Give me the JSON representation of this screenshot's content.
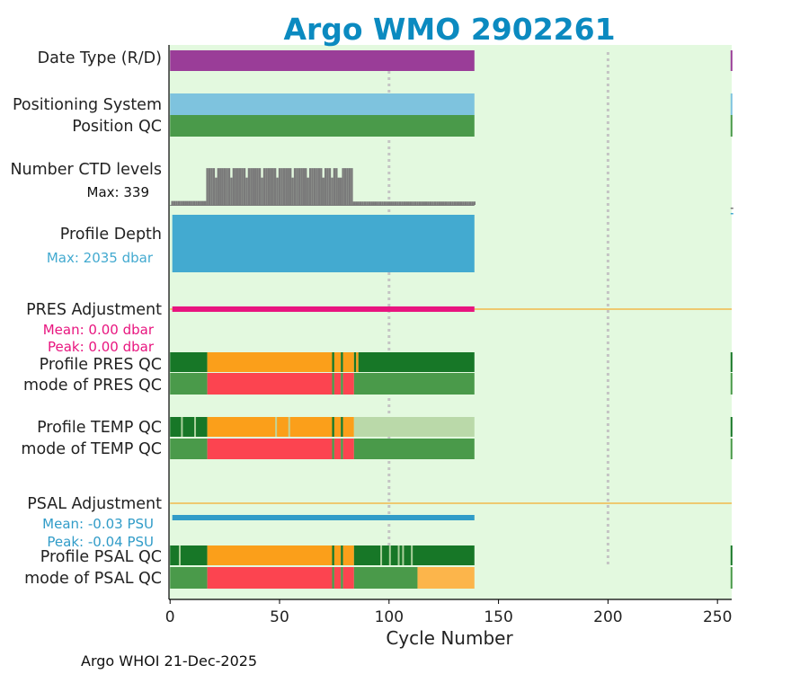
{
  "chart_data": {
    "type": "timeline-qc",
    "title": "Argo WMO 2902261",
    "xlabel": "Cycle Number",
    "xlim": [
      -0.5,
      256.5
    ],
    "xticks": [
      0,
      50,
      100,
      150,
      200,
      250
    ],
    "last_cycle": 139,
    "gridlines_at": [
      100,
      200
    ],
    "footer": "Argo WHOI 21-Dec-2025",
    "colors": {
      "background": "#e3f9df",
      "title": "#0b8ac0",
      "date_type": "#9a3d98",
      "positioning": "#7ec3de",
      "qc_good": "#4a9a4a",
      "qc_good_dark": "#177727",
      "qc_probably_good": "#bad9a9",
      "qc_probably_bad": "#fb9f1a",
      "qc_bad": "#fc4450",
      "qc_changed": "#fcb54b",
      "ctd_levels": "#7a7a7a",
      "profile_depth": "#43aad0",
      "pres_adjustment": "#e8157f",
      "psal_adjustment": "#319cc8",
      "zero_line": "#f2b94b"
    },
    "rows": [
      {
        "label": "Date Type (R/D)",
        "segments": [
          {
            "from": 0,
            "to": 139,
            "color": "date_type"
          },
          {
            "from": 256,
            "to": 257,
            "color": "date_type"
          }
        ]
      },
      {
        "label": "Positioning System",
        "segments": [
          {
            "from": 0,
            "to": 139,
            "color": "positioning"
          },
          {
            "from": 256,
            "to": 257,
            "color": "positioning"
          }
        ]
      },
      {
        "label": "Position QC",
        "segments": [
          {
            "from": 0,
            "to": 139,
            "color": "qc_good"
          },
          {
            "from": 256,
            "to": 257,
            "color": "qc_good"
          }
        ]
      },
      {
        "label": "Profile PRES QC",
        "segments": [
          {
            "from": 0,
            "to": 17,
            "color": "qc_good_dark"
          },
          {
            "from": 17,
            "to": 74,
            "color": "qc_probably_bad"
          },
          {
            "from": 74,
            "to": 75,
            "color": "qc_good_dark"
          },
          {
            "from": 75,
            "to": 78,
            "color": "qc_probably_bad"
          },
          {
            "from": 78,
            "to": 79,
            "color": "qc_good_dark"
          },
          {
            "from": 79,
            "to": 84,
            "color": "qc_probably_bad"
          },
          {
            "from": 84,
            "to": 85,
            "color": "qc_good_dark"
          },
          {
            "from": 85,
            "to": 86,
            "color": "qc_probably_bad"
          },
          {
            "from": 86,
            "to": 139,
            "color": "qc_good_dark"
          },
          {
            "from": 256,
            "to": 257,
            "color": "qc_good_dark"
          }
        ]
      },
      {
        "label": "mode of PRES QC",
        "segments": [
          {
            "from": 0,
            "to": 17,
            "color": "qc_good"
          },
          {
            "from": 17,
            "to": 74,
            "color": "qc_bad"
          },
          {
            "from": 74,
            "to": 75,
            "color": "qc_good"
          },
          {
            "from": 75,
            "to": 78,
            "color": "qc_bad"
          },
          {
            "from": 78,
            "to": 79,
            "color": "qc_good"
          },
          {
            "from": 79,
            "to": 84,
            "color": "qc_bad"
          },
          {
            "from": 84,
            "to": 139,
            "color": "qc_good"
          },
          {
            "from": 256,
            "to": 257,
            "color": "qc_good"
          }
        ]
      },
      {
        "label": "Profile TEMP QC",
        "segments": [
          {
            "from": 0,
            "to": 17,
            "color": "qc_good_dark"
          },
          {
            "from": 17,
            "to": 74,
            "color": "qc_probably_bad"
          },
          {
            "from": 74,
            "to": 75,
            "color": "qc_good_dark"
          },
          {
            "from": 75,
            "to": 78,
            "color": "qc_probably_bad"
          },
          {
            "from": 78,
            "to": 79,
            "color": "qc_good_dark"
          },
          {
            "from": 79,
            "to": 84,
            "color": "qc_probably_bad"
          },
          {
            "from": 84,
            "to": 139,
            "color": "qc_probably_good"
          },
          {
            "from": 256,
            "to": 257,
            "color": "qc_good_dark"
          }
        ]
      },
      {
        "label": "mode of TEMP QC",
        "segments": [
          {
            "from": 0,
            "to": 17,
            "color": "qc_good"
          },
          {
            "from": 17,
            "to": 74,
            "color": "qc_bad"
          },
          {
            "from": 74,
            "to": 75,
            "color": "qc_good"
          },
          {
            "from": 75,
            "to": 78,
            "color": "qc_bad"
          },
          {
            "from": 78,
            "to": 79,
            "color": "qc_good"
          },
          {
            "from": 79,
            "to": 84,
            "color": "qc_bad"
          },
          {
            "from": 84,
            "to": 139,
            "color": "qc_good"
          },
          {
            "from": 256,
            "to": 257,
            "color": "qc_good"
          }
        ]
      },
      {
        "label": "Profile PSAL QC",
        "segments": [
          {
            "from": 0,
            "to": 17,
            "color": "qc_good_dark"
          },
          {
            "from": 17,
            "to": 74,
            "color": "qc_probably_bad"
          },
          {
            "from": 74,
            "to": 75,
            "color": "qc_good_dark"
          },
          {
            "from": 75,
            "to": 78,
            "color": "qc_probably_bad"
          },
          {
            "from": 78,
            "to": 79,
            "color": "qc_good_dark"
          },
          {
            "from": 79,
            "to": 84,
            "color": "qc_probably_bad"
          },
          {
            "from": 84,
            "to": 139,
            "color": "qc_good_dark"
          },
          {
            "from": 256,
            "to": 257,
            "color": "qc_good_dark"
          }
        ]
      },
      {
        "label": "mode of PSAL QC",
        "segments": [
          {
            "from": 0,
            "to": 17,
            "color": "qc_good"
          },
          {
            "from": 17,
            "to": 74,
            "color": "qc_bad"
          },
          {
            "from": 74,
            "to": 75,
            "color": "qc_good"
          },
          {
            "from": 75,
            "to": 78,
            "color": "qc_bad"
          },
          {
            "from": 78,
            "to": 79,
            "color": "qc_good"
          },
          {
            "from": 79,
            "to": 84,
            "color": "qc_bad"
          },
          {
            "from": 84,
            "to": 113,
            "color": "qc_good"
          },
          {
            "from": 113,
            "to": 139,
            "color": "qc_changed"
          },
          {
            "from": 256,
            "to": 257,
            "color": "qc_good"
          }
        ]
      }
    ],
    "ctd_levels": {
      "label": "Number CTD levels",
      "max_text": "Max: 339",
      "max": 339
    },
    "profile_depth": {
      "label": "Profile Depth",
      "max_text": "Max: 2035 dbar",
      "max_dbar": 2035
    },
    "pres_adjustment": {
      "label": "PRES Adjustment",
      "mean_text": "Mean: 0.00 dbar",
      "peak_text": "Peak: 0.00 dbar",
      "mean": 0.0,
      "peak": 0.0
    },
    "psal_adjustment": {
      "label": "PSAL Adjustment",
      "mean_text": "Mean: -0.03 PSU",
      "peak_text": "Peak: -0.04 PSU",
      "mean": -0.03,
      "peak": -0.04
    }
  }
}
